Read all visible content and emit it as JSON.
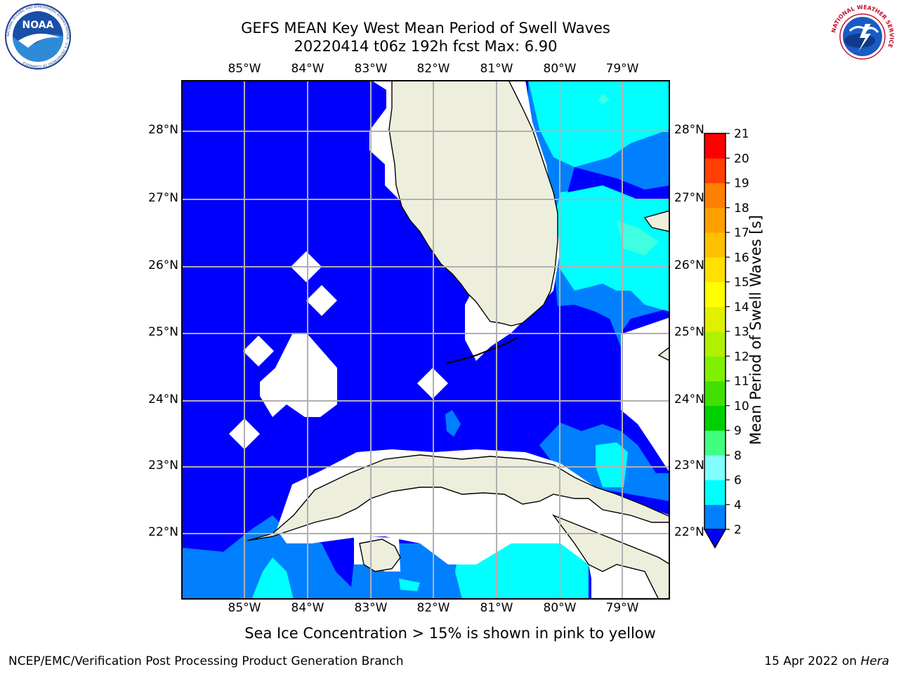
{
  "header": {
    "title_line1": "GEFS MEAN Key West Mean Period of Swell Waves",
    "title_line2": "20220414 t06z 192h fcst   Max: 6.90"
  },
  "logos": {
    "left": {
      "name": "NOAA",
      "text": "NOAA",
      "ring_text": "NATIONAL OCEANIC AND ATMOSPHERIC ADMINISTRATION · U.S. DEPARTMENT OF COMMERCE"
    },
    "right": {
      "name": "National Weather Service",
      "ring_text": "NATIONAL WEATHER SERVICE"
    }
  },
  "map": {
    "lon_labels": [
      "85°W",
      "84°W",
      "83°W",
      "82°W",
      "81°W",
      "80°W",
      "79°W"
    ],
    "lat_labels": [
      "28°N",
      "27°N",
      "26°N",
      "25°N",
      "24°N",
      "23°N",
      "22°N"
    ],
    "extent": {
      "lon_min": -86.0,
      "lon_max": -78.3,
      "lat_min": 21.0,
      "lat_max": 28.75
    },
    "land_color": "#eeeedd",
    "ocean_levels": {
      "2-4": "#0000ff",
      "4-6": "#0080ff",
      "6-8": "#00ffff"
    }
  },
  "colorbar": {
    "label": "Mean Period of Swell Waves [s]",
    "ticks": [
      "2",
      "4",
      "6",
      "8",
      "9",
      "10",
      "11",
      "12",
      "13",
      "14",
      "15",
      "16",
      "17",
      "18",
      "19",
      "20",
      "21"
    ],
    "colors": [
      "#0000ff",
      "#0080ff",
      "#00ffff",
      "#40ffe0",
      "#80ffc0",
      "#40e060",
      "#00e000",
      "#40d000",
      "#80e000",
      "#c0f000",
      "#e0f800",
      "#ffff00",
      "#ffe000",
      "#ffc000",
      "#ffa000",
      "#ff8000",
      "#ff5000",
      "#ff2000",
      "#ff0000"
    ]
  },
  "notes": {
    "ice": "Sea Ice Concentration > 15% is shown in pink to yellow"
  },
  "footer": {
    "left": "NCEP/EMC/Verification Post Processing Product Generation Branch",
    "date": "15 Apr 2022 on ",
    "host": "Hera"
  }
}
